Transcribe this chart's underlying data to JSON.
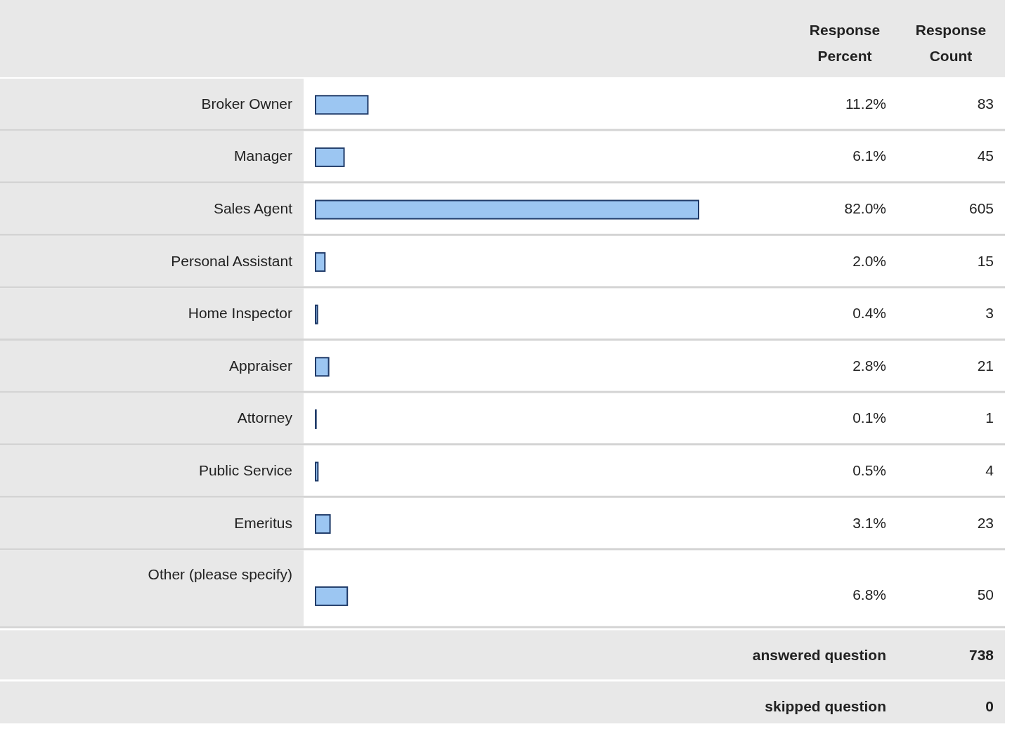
{
  "chart_data": {
    "type": "bar",
    "orientation": "horizontal",
    "tick_labels": "y",
    "categories": [
      "Broker Owner",
      "Manager",
      "Sales Agent",
      "Personal Assistant",
      "Home Inspector",
      "Appraiser",
      "Attorney",
      "Public Service",
      "Emeritus",
      "Other (please specify)"
    ],
    "series": [
      {
        "name": "Response Percent",
        "color": "#9cc6f2",
        "values": [
          11.2,
          6.1,
          82.0,
          2.0,
          0.4,
          2.8,
          0.1,
          0.5,
          3.1,
          6.8
        ],
        "value_labels": [
          "11.2%",
          "6.1%",
          "82.0%",
          "2.0%",
          "0.4%",
          "2.8%",
          "0.1%",
          "0.5%",
          "3.1%",
          "6.8%"
        ]
      }
    ],
    "annotations": [
      "Response Count",
      "83",
      "45",
      "605",
      "15",
      "3",
      "21",
      "1",
      "4",
      "23",
      "50",
      "answered question",
      "738",
      "skipped question",
      "0"
    ]
  }
}
